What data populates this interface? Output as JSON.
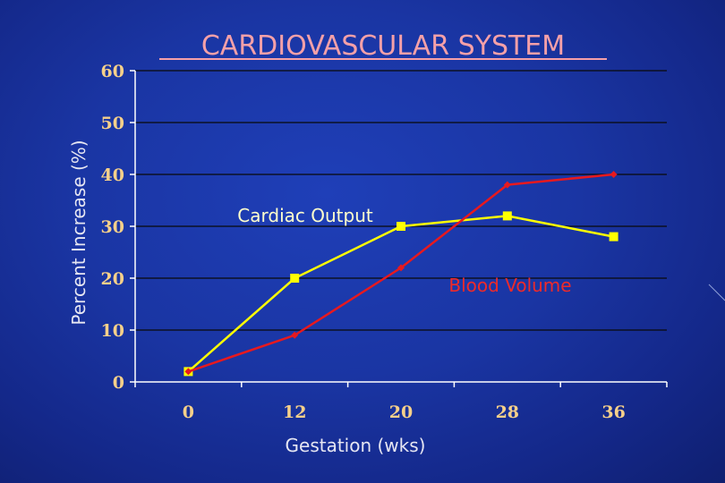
{
  "chart_data": {
    "type": "line",
    "title": "CARDIOVASCULAR SYSTEM",
    "xlabel": "Gestation (wks)",
    "ylabel": "Percent Increase (%)",
    "categories": [
      "0",
      "12",
      "20",
      "28",
      "36"
    ],
    "yticks": [
      "0",
      "10",
      "20",
      "30",
      "40",
      "50",
      "60"
    ],
    "ylim": [
      0,
      60
    ],
    "grid": true,
    "series": [
      {
        "name": "Cardiac Output",
        "values": [
          2,
          20,
          30,
          32,
          28
        ],
        "color": "#ffff00",
        "marker": "square"
      },
      {
        "name": "Blood Volume",
        "values": [
          2,
          9,
          22,
          38,
          40
        ],
        "color": "#e8191e",
        "marker": "diamond"
      }
    ],
    "colors": {
      "title": "#f5a0a8",
      "ticks": "#f6d08a",
      "axis": "#ffffff",
      "grid": "#0a0a0a"
    }
  }
}
